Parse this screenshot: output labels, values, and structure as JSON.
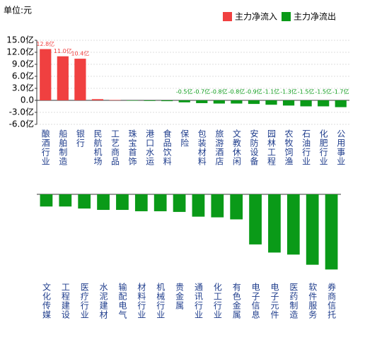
{
  "chart_data": [
    {
      "type": "bar",
      "title": "单位:元",
      "legend": [
        {
          "name": "主力净流入",
          "color": "#f04040"
        },
        {
          "name": "主力净流出",
          "color": "#0a9a18"
        }
      ],
      "categories": [
        "酿酒行业",
        "船舶制造",
        "银行",
        "民航机场",
        "工艺商品",
        "珠宝首饰",
        "港口水运",
        "食品饮料",
        "保险",
        "包装材料",
        "旅游酒店",
        "文教休闲",
        "安防设备",
        "园林工程",
        "农牧饲渔",
        "石油行业",
        "化肥行业",
        "公用事业"
      ],
      "values": [
        12.8,
        11.0,
        10.4,
        0.3,
        0.1,
        -0.1,
        -0.15,
        -0.2,
        -0.5,
        -0.7,
        -0.8,
        -0.8,
        -0.9,
        -1.1,
        -1.3,
        -1.5,
        -1.5,
        -1.7
      ],
      "value_labels": [
        "12.8亿",
        "11.0亿",
        "10.4亿",
        null,
        null,
        null,
        null,
        null,
        "-0.5亿",
        "-0.7亿",
        "-0.8亿",
        "-0.8亿",
        "-0.9亿",
        "-1.1亿",
        "-1.3亿",
        "-1.5亿",
        "-1.5亿",
        "-1.7亿"
      ],
      "ylim": [
        -6,
        15
      ],
      "yticks": [
        {
          "value": 15,
          "label": "15.0亿"
        },
        {
          "value": 12,
          "label": "12.0亿"
        },
        {
          "value": 9,
          "label": "9.0亿"
        },
        {
          "value": 6,
          "label": "6.0亿"
        },
        {
          "value": 3,
          "label": "3.0亿"
        },
        {
          "value": 0,
          "label": "0.0"
        },
        {
          "value": -3,
          "label": "-3.0亿"
        },
        {
          "value": -6,
          "label": "-6.0亿"
        }
      ],
      "grid": true
    },
    {
      "type": "bar",
      "color": "#0a9a18",
      "categories": [
        "文化传媒",
        "工程建设",
        "医疗行业",
        "水泥建材",
        "输配电气",
        "材料行业",
        "机械行业",
        "贵金属",
        "通讯行业",
        "化工行业",
        "有色金属",
        "电子信息",
        "电子元件",
        "医药制造",
        "软件服务",
        "券商信托"
      ],
      "values": [
        -1.8,
        -1.8,
        -2.1,
        -2.3,
        -2.3,
        -2.5,
        -2.5,
        -2.6,
        -3.3,
        -3.4,
        -3.7,
        -7.4,
        -8.6,
        -8.9,
        -10.4,
        -11.1
      ],
      "ylim": [
        -12,
        0
      ]
    }
  ]
}
